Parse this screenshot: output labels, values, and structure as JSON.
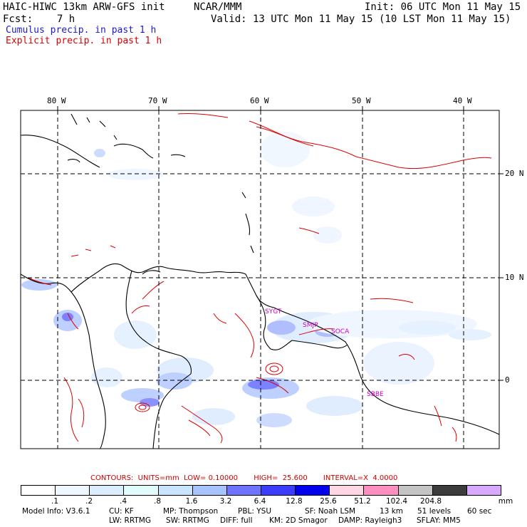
{
  "header": {
    "model_title": "HAIC-HIWC 13km ARW-GFS init",
    "center": "NCAR/MMM",
    "init": "Init: 06 UTC Mon 11 May 15",
    "fcst": "Fcst:    7 h",
    "valid": "Valid: 13 UTC Mon 11 May 15 (10 LST Mon 11 May 15)"
  },
  "legend": {
    "cumulus": "Cumulus precip. in past 1 h",
    "cumulus_color": "#1a1acc",
    "explicit": "Explicit precip. in past 1 h",
    "explicit_color": "#dd0000"
  },
  "map": {
    "lon_labels": [
      "80 W",
      "70 W",
      "60 W",
      "50 W",
      "40 W"
    ],
    "lat_labels": [
      "20 N",
      "10 N",
      "0"
    ],
    "stations": [
      "SBBE",
      "SMJP",
      "SOCA",
      "SYGT"
    ],
    "station_color": "#cc00cc",
    "coastline_color": "#000000",
    "grid_style": "dashed"
  },
  "contours": {
    "label": "CONTOURS:  UNITS=mm  LOW= 0.10000       HIGH=  25.600       INTERVAL=X  4.0000"
  },
  "colorbar": {
    "labels": [
      ".1",
      ".2",
      ".4",
      ".8",
      "1.6",
      "3.2",
      "6.4",
      "12.8",
      "25.6",
      "51.2",
      "102.4",
      "204.8"
    ],
    "unit": "mm",
    "colors": [
      "#ffffff",
      "#eef6ff",
      "#dbeeff",
      "#e2fbfb",
      "#c8e4ff",
      "#a8c4ff",
      "#6e74ff",
      "#3c3cff",
      "#0000ee",
      "#ffd6e2",
      "#ff8fc0",
      "#c4c4c4",
      "#3c3c3c",
      "#d8aaff"
    ]
  },
  "footer": {
    "line1": [
      "Model Info: V3.6.1",
      "CU: KF",
      "MP: Thompson",
      "PBL: YSU",
      "SF: Noah LSM",
      "13 km",
      "51 levels",
      "60 sec"
    ],
    "line2": [
      "LW: RRTMG",
      "SW: RRTMG",
      "DIFF: full",
      "KM: 2D Smagor",
      "DAMP: Rayleigh3",
      "SFLAY: MM5"
    ]
  }
}
